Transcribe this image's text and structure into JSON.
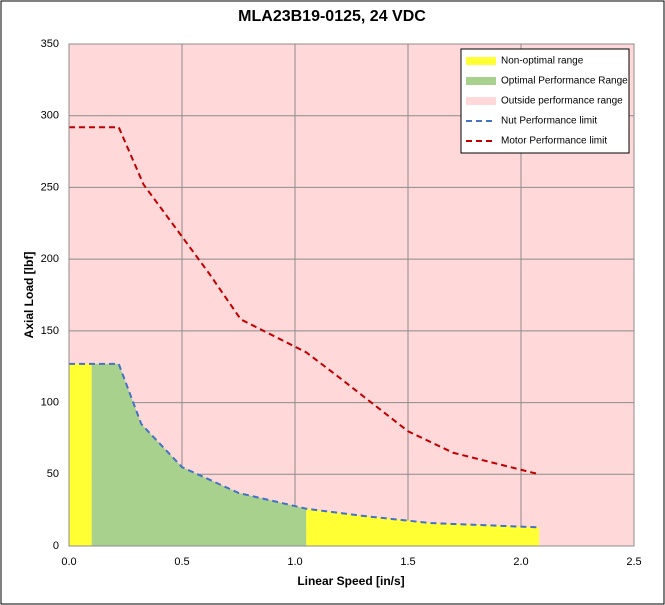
{
  "chart_data": {
    "type": "area",
    "title": "MLA23B19-0125, 24 VDC",
    "x_label": "Linear Speed [in/s]",
    "y_label": "Axial Load [lbf]",
    "xlim": [
      0,
      2.5
    ],
    "ylim": [
      0,
      350
    ],
    "xticks": [
      {
        "value": 0,
        "label": "0.0"
      },
      0.5,
      {
        "value": 1,
        "label": "1.0"
      },
      1.5,
      {
        "value": 2,
        "label": "2.0"
      },
      2.5
    ],
    "yticks": [
      0,
      50,
      100,
      150,
      200,
      250,
      300,
      350
    ],
    "grid": true,
    "legend": "top-right",
    "series": [
      {
        "name": "Non-optimal range",
        "type": "area",
        "color": "#ffff33",
        "x": [
          0,
          0.1,
          null,
          1.05,
          1.3,
          1.6,
          2.08
        ],
        "values": [
          127,
          127,
          null,
          26,
          21,
          16,
          13
        ]
      },
      {
        "name": "Optimal Performance Range",
        "type": "area",
        "color": "#a9d18e",
        "x": [
          0.1,
          0.22,
          0.32,
          0.5,
          0.75,
          1.05
        ],
        "values": [
          127,
          127,
          85,
          55,
          37,
          26
        ]
      },
      {
        "name": "Outside performance range",
        "type": "area",
        "color": "#ffd9d9",
        "x": [
          0,
          2.5
        ],
        "values": [
          350,
          350
        ]
      },
      {
        "name": "Nut Performance limit",
        "type": "line",
        "dashed": true,
        "color": "#4472c4",
        "x": [
          0,
          0.22,
          0.32,
          0.5,
          0.75,
          1.05,
          1.3,
          1.6,
          2.08
        ],
        "values": [
          127,
          127,
          85,
          55,
          37,
          26,
          21,
          16,
          13
        ]
      },
      {
        "name": "Motor Performance limit",
        "type": "line",
        "dashed": true,
        "color": "#c00000",
        "x": [
          0,
          0.22,
          0.33,
          0.48,
          0.62,
          0.76,
          1.05,
          1.2,
          1.5,
          1.7,
          2.08
        ],
        "values": [
          292,
          292,
          252,
          220,
          190,
          158,
          135,
          117,
          80,
          65,
          50
        ]
      }
    ]
  }
}
